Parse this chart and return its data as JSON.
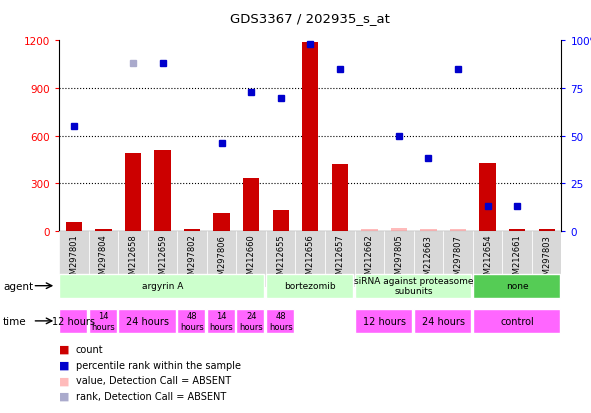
{
  "title": "GDS3367 / 202935_s_at",
  "samples": [
    "GSM297801",
    "GSM297804",
    "GSM212658",
    "GSM212659",
    "GSM297802",
    "GSM297806",
    "GSM212660",
    "GSM212655",
    "GSM212656",
    "GSM212657",
    "GSM212662",
    "GSM297805",
    "GSM212663",
    "GSM297807",
    "GSM212654",
    "GSM212661",
    "GSM297803"
  ],
  "count_values": [
    55,
    10,
    490,
    510,
    10,
    110,
    330,
    130,
    1190,
    420,
    10,
    20,
    10,
    10,
    430,
    10,
    10
  ],
  "count_absent": [
    false,
    false,
    false,
    false,
    false,
    false,
    false,
    false,
    false,
    false,
    true,
    true,
    true,
    true,
    false,
    false,
    false
  ],
  "rank_values": [
    55,
    null,
    88,
    88,
    null,
    46,
    73,
    70,
    98,
    85,
    null,
    50,
    38,
    85,
    13,
    13,
    null
  ],
  "rank_absent": [
    false,
    false,
    true,
    false,
    true,
    false,
    false,
    false,
    false,
    false,
    false,
    false,
    false,
    false,
    false,
    false,
    false
  ],
  "count_color": "#cc0000",
  "count_absent_color": "#ffbbbb",
  "rank_color": "#0000cc",
  "rank_absent_color": "#aaaacc",
  "ylim_left": [
    0,
    1200
  ],
  "ylim_right": [
    0,
    100
  ],
  "yticks_left": [
    0,
    300,
    600,
    900,
    1200
  ],
  "yticks_right": [
    0,
    25,
    50,
    75,
    100
  ],
  "agent_groups": [
    {
      "label": "argyrin A",
      "start": 0,
      "end": 7,
      "color": "#ccffcc"
    },
    {
      "label": "bortezomib",
      "start": 7,
      "end": 10,
      "color": "#ccffcc"
    },
    {
      "label": "siRNA against proteasome\nsubunits",
      "start": 10,
      "end": 14,
      "color": "#ccffcc"
    },
    {
      "label": "none",
      "start": 14,
      "end": 17,
      "color": "#55cc55"
    }
  ],
  "time_groups": [
    {
      "label": "12 hours",
      "start": 0,
      "end": 1,
      "fontsize": 7
    },
    {
      "label": "14\nhours",
      "start": 1,
      "end": 2,
      "fontsize": 6
    },
    {
      "label": "24 hours",
      "start": 2,
      "end": 4,
      "fontsize": 7
    },
    {
      "label": "48\nhours",
      "start": 4,
      "end": 5,
      "fontsize": 6
    },
    {
      "label": "14\nhours",
      "start": 5,
      "end": 6,
      "fontsize": 6
    },
    {
      "label": "24\nhours",
      "start": 6,
      "end": 7,
      "fontsize": 6
    },
    {
      "label": "48\nhours",
      "start": 7,
      "end": 8,
      "fontsize": 6
    },
    {
      "label": "12 hours",
      "start": 10,
      "end": 12,
      "fontsize": 7
    },
    {
      "label": "24 hours",
      "start": 12,
      "end": 14,
      "fontsize": 7
    },
    {
      "label": "control",
      "start": 14,
      "end": 17,
      "fontsize": 7
    }
  ],
  "background_color": "#ffffff",
  "plot_bg_color": "#ffffff"
}
